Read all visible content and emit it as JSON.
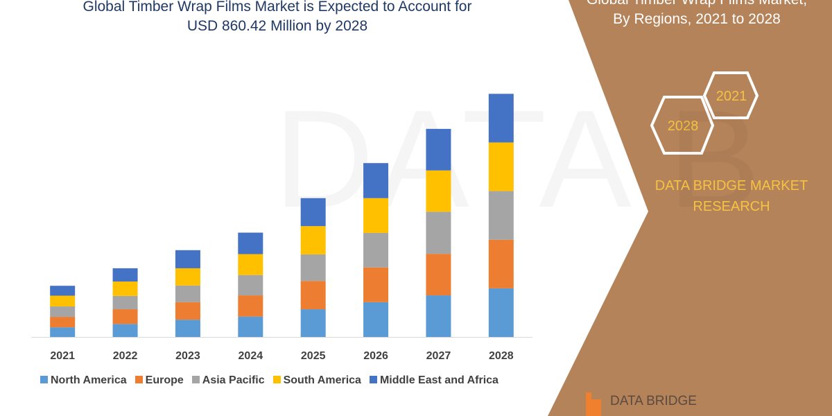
{
  "title_line1": "Global Timber Wrap Films Market is Expected to Account for",
  "title_line2": "USD 860.42 Million by 2028",
  "side_title_line1": "Global Timber Wrap Films Market,",
  "side_title_line2": "By Regions, 2021 to 2028",
  "hex_labels": [
    "2021",
    "2028"
  ],
  "brand_line1": "DATA BRIDGE MARKET",
  "brand_line2": "RESEARCH",
  "logo_text": "DATA BRIDGE",
  "watermark": "DATA B",
  "colors": {
    "panel": "#B5835A",
    "title": "#1F3864",
    "brand": "#F5C242"
  },
  "chart_data": {
    "type": "bar",
    "stacked": true,
    "categories": [
      "2021",
      "2022",
      "2023",
      "2024",
      "2025",
      "2026",
      "2027",
      "2028"
    ],
    "series": [
      {
        "name": "North America",
        "color": "#5B9BD5",
        "values": [
          34,
          46,
          61,
          72,
          98,
          123,
          147,
          172
        ]
      },
      {
        "name": "Europe",
        "color": "#ED7D31",
        "values": [
          37,
          52,
          62,
          75,
          100,
          123,
          147,
          172
        ]
      },
      {
        "name": "Asia Pacific",
        "color": "#A5A5A5",
        "values": [
          37,
          47,
          59,
          72,
          94,
          122,
          149,
          172
        ]
      },
      {
        "name": "South America",
        "color": "#FFC000",
        "values": [
          38,
          51,
          61,
          74,
          100,
          123,
          146,
          172
        ]
      },
      {
        "name": "Middle East and Africa",
        "color": "#4472C4",
        "values": [
          35,
          47,
          64,
          76,
          99,
          124,
          147,
          172
        ]
      }
    ],
    "ylim": [
      0,
      900
    ],
    "grid": false,
    "legend": "bottom"
  }
}
